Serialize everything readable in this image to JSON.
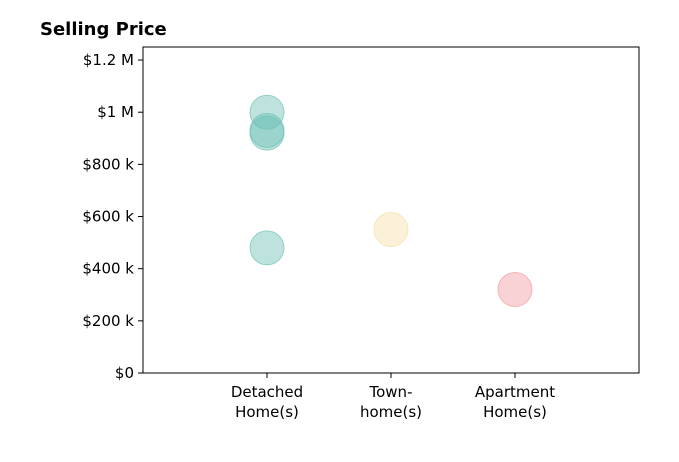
{
  "chart_data": {
    "type": "scatter",
    "title": "Selling Price",
    "xlabel": "",
    "ylabel": "",
    "categories": [
      [
        "Detached",
        "Home(s)"
      ],
      [
        "Town-",
        "home(s)"
      ],
      [
        "Apartment",
        "Home(s)"
      ]
    ],
    "x_range": [
      0,
      4
    ],
    "ylim": [
      0,
      1250000
    ],
    "y_ticks": [
      {
        "value": 0,
        "label": "$0"
      },
      {
        "value": 200000,
        "label": "$200 k"
      },
      {
        "value": 400000,
        "label": "$400 k"
      },
      {
        "value": 600000,
        "label": "$600 k"
      },
      {
        "value": 800000,
        "label": "$800 k"
      },
      {
        "value": 1000000,
        "label": "$1 M"
      },
      {
        "value": 1200000,
        "label": "$1.2 M"
      }
    ],
    "grid": false,
    "legend": "none",
    "colors": {
      "Detached Home(s)": "#6fc2b5",
      "Town-home(s)": "#f5dfa9",
      "Apartment Home(s)": "#f29ca2"
    },
    "points": [
      {
        "category": 0,
        "value": 1000000
      },
      {
        "category": 0,
        "value": 930000
      },
      {
        "category": 0,
        "value": 920000
      },
      {
        "category": 0,
        "value": 480000
      },
      {
        "category": 1,
        "value": 550000
      },
      {
        "category": 2,
        "value": 320000
      }
    ]
  }
}
